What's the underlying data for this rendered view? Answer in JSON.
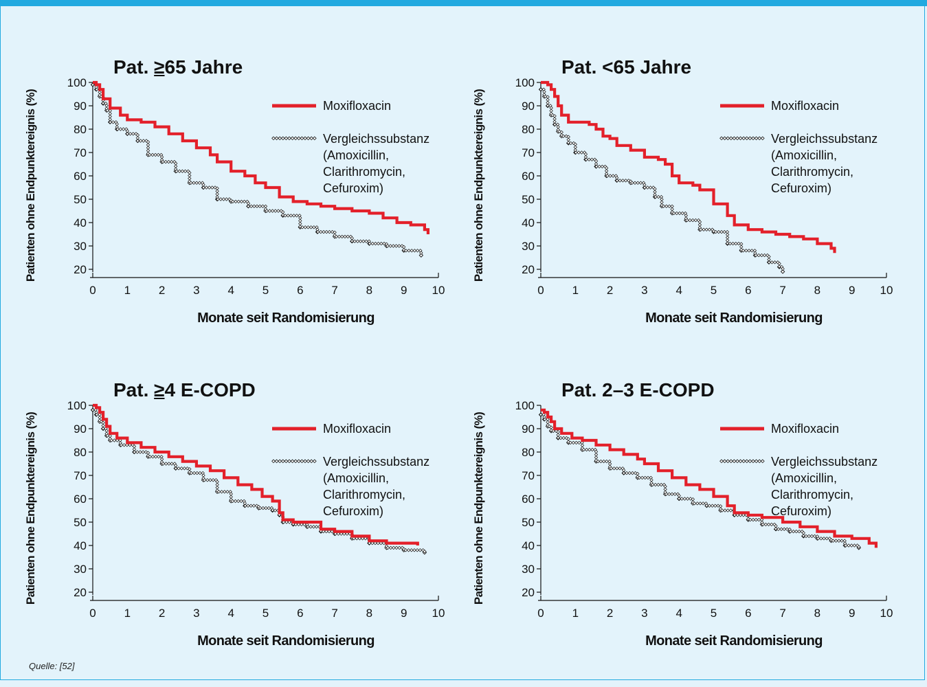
{
  "colors": {
    "accent": "#22a9e0",
    "background": "#e3f3fb",
    "moxifloxacin": "#e3202a",
    "comparator": "#111111"
  },
  "ylabel": "Patienten ohne Endpunktereignis (%)",
  "xlabel": "Monate seit Randomisierung",
  "legend": {
    "moxi": "Moxifloxacin",
    "comp_line1": "Vergleichssubstanz",
    "comp_line2": "(Amoxicillin,",
    "comp_line3": "Clarithromycin,",
    "comp_line4": "Cefuroxim)"
  },
  "source": "Quelle: [52]",
  "chart_data": [
    {
      "type": "line",
      "title_prefix": "Pat. ",
      "title_underlined": "≥",
      "title_rest": "65 Jahre",
      "xlabel": "Monate seit Randomisierung",
      "ylabel": "Patienten ohne Endpunktereignis (%)",
      "xlim": [
        0,
        10
      ],
      "ylim": [
        20,
        100
      ],
      "xticks": [
        0,
        1,
        2,
        3,
        4,
        5,
        6,
        7,
        8,
        9,
        10
      ],
      "yticks": [
        100,
        90,
        80,
        70,
        60,
        50,
        40,
        30,
        20
      ],
      "series": [
        {
          "name": "Moxifloxacin",
          "x": [
            0,
            0.1,
            0.2,
            0.3,
            0.5,
            0.8,
            1.0,
            1.4,
            1.8,
            2.2,
            2.6,
            3.0,
            3.4,
            3.6,
            4.0,
            4.4,
            4.7,
            5.0,
            5.4,
            5.8,
            6.2,
            6.6,
            7.0,
            7.5,
            8.0,
            8.4,
            8.8,
            9.2,
            9.6,
            9.7
          ],
          "y": [
            100,
            99,
            97,
            93,
            89,
            86,
            84,
            83,
            81,
            78,
            75,
            72,
            69,
            66,
            62,
            60,
            57,
            55,
            51,
            49,
            48,
            47,
            46,
            45,
            44,
            42,
            40,
            39,
            37,
            35
          ]
        },
        {
          "name": "Vergleichssubstanz",
          "x": [
            0,
            0.1,
            0.2,
            0.3,
            0.4,
            0.5,
            0.7,
            1.0,
            1.3,
            1.6,
            2.0,
            2.4,
            2.8,
            3.2,
            3.6,
            4.0,
            4.5,
            5.0,
            5.5,
            6.0,
            6.5,
            7.0,
            7.5,
            8.0,
            8.5,
            9.0,
            9.5
          ],
          "y": [
            99,
            97,
            94,
            91,
            88,
            83,
            80,
            78,
            75,
            69,
            66,
            62,
            57,
            55,
            50,
            49,
            47,
            45,
            43,
            38,
            36,
            34,
            32,
            31,
            30,
            28,
            26
          ]
        }
      ]
    },
    {
      "type": "line",
      "title_prefix": "Pat. ",
      "title_underlined": "",
      "title_rest": "<65 Jahre",
      "xlabel": "Monate seit Randomisierung",
      "ylabel": "Patienten ohne Endpunktereignis (%)",
      "xlim": [
        0,
        10
      ],
      "ylim": [
        20,
        100
      ],
      "xticks": [
        0,
        1,
        2,
        3,
        4,
        5,
        6,
        7,
        8,
        9,
        10
      ],
      "yticks": [
        100,
        90,
        80,
        70,
        60,
        50,
        40,
        30,
        20
      ],
      "series": [
        {
          "name": "Moxifloxacin",
          "x": [
            0,
            0.2,
            0.3,
            0.4,
            0.5,
            0.6,
            0.8,
            1.0,
            1.4,
            1.6,
            1.8,
            2.0,
            2.2,
            2.6,
            3.0,
            3.4,
            3.6,
            3.8,
            4.0,
            4.4,
            4.6,
            5.0,
            5.4,
            5.6,
            6.0,
            6.4,
            6.8,
            7.2,
            7.6,
            8.0,
            8.4,
            8.5
          ],
          "y": [
            100,
            99,
            97,
            94,
            90,
            86,
            83,
            83,
            82,
            80,
            77,
            76,
            73,
            71,
            68,
            67,
            65,
            60,
            57,
            56,
            54,
            48,
            43,
            39,
            37,
            36,
            35,
            34,
            33,
            31,
            29,
            27
          ]
        },
        {
          "name": "Vergleichssubstanz",
          "x": [
            0,
            0.1,
            0.2,
            0.3,
            0.4,
            0.5,
            0.6,
            0.8,
            1.0,
            1.3,
            1.6,
            1.9,
            2.2,
            2.6,
            3.0,
            3.3,
            3.5,
            3.8,
            4.2,
            4.6,
            5.0,
            5.4,
            5.8,
            6.2,
            6.6,
            6.9,
            7.0
          ],
          "y": [
            97,
            94,
            90,
            86,
            82,
            79,
            77,
            74,
            70,
            67,
            64,
            60,
            58,
            57,
            55,
            51,
            47,
            44,
            41,
            37,
            36,
            31,
            28,
            26,
            23,
            21,
            19
          ]
        }
      ]
    },
    {
      "type": "line",
      "title_prefix": "Pat. ",
      "title_underlined": "≥",
      "title_rest": "4 E-COPD",
      "xlabel": "Monate seit Randomisierung",
      "ylabel": "Patienten ohne Endpunktereignis (%)",
      "xlim": [
        0,
        10
      ],
      "ylim": [
        20,
        100
      ],
      "xticks": [
        0,
        1,
        2,
        3,
        4,
        5,
        6,
        7,
        8,
        9,
        10
      ],
      "yticks": [
        100,
        90,
        80,
        70,
        60,
        50,
        40,
        30,
        20
      ],
      "series": [
        {
          "name": "Moxifloxacin",
          "x": [
            0,
            0.1,
            0.2,
            0.3,
            0.4,
            0.5,
            0.7,
            1.0,
            1.4,
            1.8,
            2.2,
            2.6,
            3.0,
            3.4,
            3.8,
            4.2,
            4.6,
            4.9,
            5.2,
            5.4,
            5.5,
            5.8,
            6.2,
            6.6,
            7.0,
            7.5,
            8.0,
            8.5,
            9.0,
            9.4
          ],
          "y": [
            100,
            99,
            97,
            94,
            91,
            88,
            86,
            84,
            82,
            80,
            78,
            76,
            74,
            72,
            69,
            66,
            64,
            61,
            59,
            54,
            51,
            50,
            50,
            47,
            46,
            44,
            42,
            41,
            41,
            40
          ]
        },
        {
          "name": "Vergleichssubstanz",
          "x": [
            0,
            0.1,
            0.2,
            0.3,
            0.4,
            0.5,
            0.8,
            1.2,
            1.6,
            2.0,
            2.4,
            2.8,
            3.2,
            3.6,
            4.0,
            4.4,
            4.8,
            5.2,
            5.4,
            5.5,
            5.8,
            6.2,
            6.6,
            7.0,
            7.5,
            8.0,
            8.5,
            9.0,
            9.6
          ],
          "y": [
            98,
            96,
            93,
            90,
            87,
            85,
            83,
            80,
            78,
            75,
            73,
            71,
            68,
            63,
            59,
            57,
            56,
            55,
            53,
            50,
            49,
            48,
            46,
            45,
            43,
            41,
            39,
            38,
            37
          ]
        }
      ]
    },
    {
      "type": "line",
      "title_prefix": "Pat. ",
      "title_underlined": "",
      "title_rest": "2–3 E-COPD",
      "xlabel": "Monate seit Randomisierung",
      "ylabel": "Patienten ohne Endpunktereignis (%)",
      "xlim": [
        0,
        10
      ],
      "ylim": [
        20,
        100
      ],
      "xticks": [
        0,
        1,
        2,
        3,
        4,
        5,
        6,
        7,
        8,
        9,
        10
      ],
      "yticks": [
        100,
        90,
        80,
        70,
        60,
        50,
        40,
        30,
        20
      ],
      "series": [
        {
          "name": "Moxifloxacin",
          "x": [
            0,
            0.1,
            0.2,
            0.3,
            0.4,
            0.6,
            0.9,
            1.2,
            1.6,
            2.0,
            2.4,
            2.8,
            3.0,
            3.4,
            3.8,
            4.2,
            4.6,
            5.0,
            5.4,
            5.6,
            6.0,
            6.4,
            7.0,
            7.5,
            8.0,
            8.5,
            9.0,
            9.5,
            9.7
          ],
          "y": [
            98,
            97,
            95,
            93,
            90,
            88,
            86,
            85,
            83,
            81,
            79,
            77,
            75,
            72,
            69,
            66,
            64,
            61,
            57,
            54,
            53,
            52,
            50,
            48,
            46,
            44,
            43,
            41,
            39
          ]
        },
        {
          "name": "Vergleichssubstanz",
          "x": [
            0,
            0.1,
            0.2,
            0.3,
            0.5,
            0.8,
            1.2,
            1.6,
            2.0,
            2.4,
            2.8,
            3.2,
            3.6,
            4.0,
            4.4,
            4.8,
            5.2,
            5.6,
            6.0,
            6.4,
            6.8,
            7.2,
            7.6,
            8.0,
            8.4,
            8.8,
            9.2
          ],
          "y": [
            96,
            94,
            91,
            89,
            86,
            84,
            81,
            76,
            73,
            71,
            69,
            66,
            62,
            60,
            58,
            57,
            55,
            53,
            51,
            49,
            47,
            46,
            44,
            43,
            42,
            40,
            39
          ]
        }
      ]
    }
  ]
}
